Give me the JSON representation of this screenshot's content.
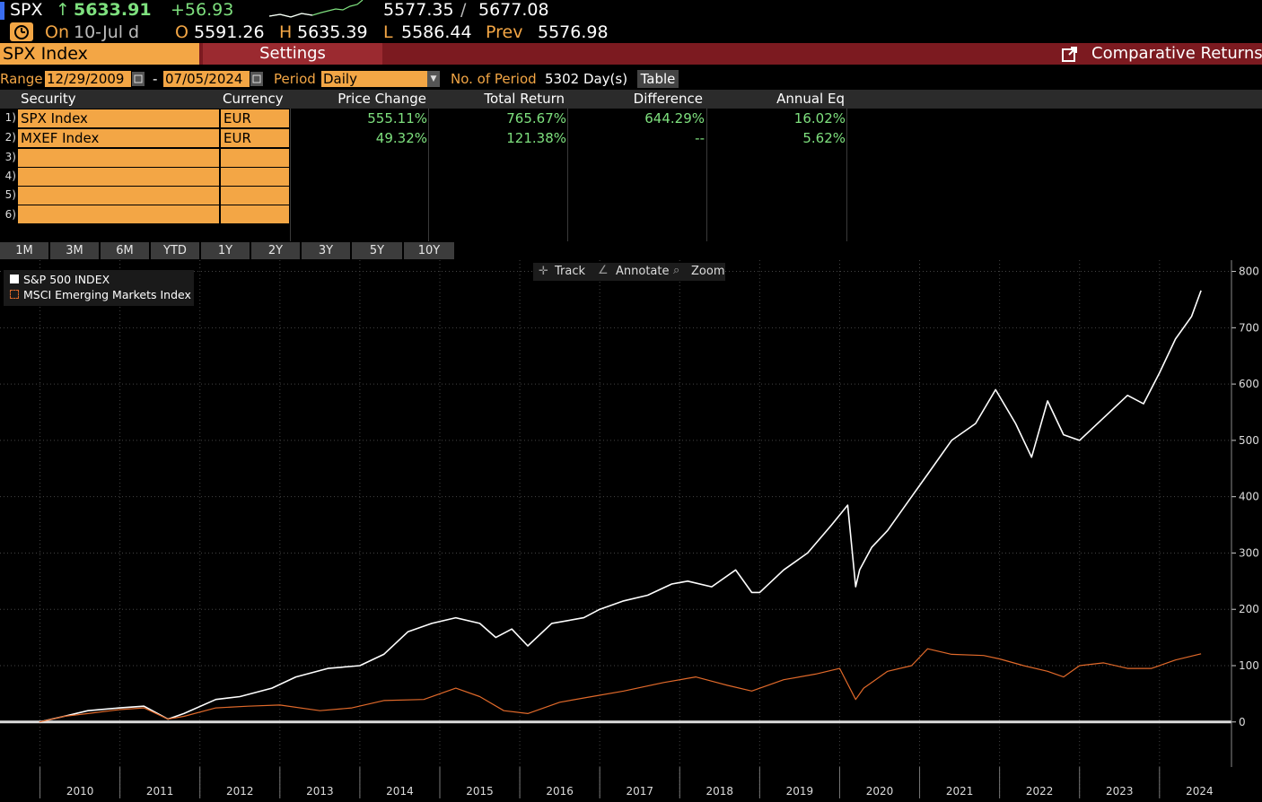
{
  "ticker": {
    "symbol": "SPX",
    "arrow": "↑",
    "last": "5633.91",
    "change": "+56.93",
    "range_low": "5577.35",
    "range_sep": "/",
    "range_high": "5677.08"
  },
  "quote": {
    "on_label": "On",
    "date": "10-Jul d",
    "open_label": "O",
    "open": "5591.26",
    "high_label": "H",
    "high": "5635.39",
    "low_label": "L",
    "low": "5586.44",
    "prev_label": "Prev",
    "prev": "5576.98"
  },
  "toolbar": {
    "security_input": "SPX Index",
    "settings_label": "Settings",
    "comparative_returns_label": "Comparative Returns"
  },
  "controls": {
    "range_label": "Range",
    "start_date": "12/29/2009",
    "dash": "-",
    "end_date": "07/05/2024",
    "period_label": "Period",
    "period_value": "Daily",
    "num_period_label": "No. of Period",
    "num_period_value": "5302 Day(s)",
    "table_button": "Table"
  },
  "table": {
    "headers": [
      "Security",
      "Currency",
      "Price Change",
      "Total Return",
      "Difference",
      "Annual Eq"
    ],
    "rows": [
      {
        "num": "1)",
        "security": "SPX Index",
        "currency": "EUR",
        "price_change": "555.11%",
        "total_return": "765.67%",
        "difference": "644.29%",
        "annual_eq": "16.02%"
      },
      {
        "num": "2)",
        "security": "MXEF Index",
        "currency": "EUR",
        "price_change": "49.32%",
        "total_return": "121.38%",
        "difference": "--",
        "annual_eq": "5.62%"
      },
      {
        "num": "3)",
        "security": "",
        "currency": "",
        "price_change": "",
        "total_return": "",
        "difference": "",
        "annual_eq": ""
      },
      {
        "num": "4)",
        "security": "",
        "currency": "",
        "price_change": "",
        "total_return": "",
        "difference": "",
        "annual_eq": ""
      },
      {
        "num": "5)",
        "security": "",
        "currency": "",
        "price_change": "",
        "total_return": "",
        "difference": "",
        "annual_eq": ""
      },
      {
        "num": "6)",
        "security": "",
        "currency": "",
        "price_change": "",
        "total_return": "",
        "difference": "",
        "annual_eq": ""
      }
    ]
  },
  "time_tabs": [
    "1M",
    "3M",
    "6M",
    "YTD",
    "1Y",
    "2Y",
    "3Y",
    "5Y",
    "10Y"
  ],
  "chart_tools": {
    "track": "Track",
    "annotate": "Annotate",
    "zoom": "Zoom"
  },
  "colors": {
    "spx_line": "#ffffff",
    "mxef_line": "#e0692a",
    "cell_orange": "#f3a645",
    "header_red": "#7c1a20",
    "positive": "#7ee07e",
    "ticker_up": "#7ee07e",
    "label_orange": "#f3a645"
  },
  "chart_data": {
    "type": "line",
    "title": "",
    "xlabel": "",
    "ylabel": "",
    "ylim": [
      -80,
      820
    ],
    "yticks": [
      0,
      100,
      200,
      300,
      400,
      500,
      600,
      700,
      800
    ],
    "xticks": [
      "2010",
      "2011",
      "2012",
      "2013",
      "2014",
      "2015",
      "2016",
      "2017",
      "2018",
      "2019",
      "2020",
      "2021",
      "2022",
      "2023",
      "2024"
    ],
    "xlim": [
      2009.5,
      2024.9
    ],
    "legend_position": "top-left",
    "series": [
      {
        "name": "S&P 500 INDEX",
        "x": [
          2009.99,
          2010.3,
          2010.6,
          2011.0,
          2011.3,
          2011.6,
          2011.8,
          2012.2,
          2012.5,
          2012.9,
          2013.2,
          2013.6,
          2014.0,
          2014.3,
          2014.6,
          2014.9,
          2015.2,
          2015.5,
          2015.7,
          2015.9,
          2016.1,
          2016.4,
          2016.8,
          2017.0,
          2017.3,
          2017.6,
          2017.9,
          2018.1,
          2018.4,
          2018.7,
          2018.9,
          2019.0,
          2019.3,
          2019.6,
          2019.9,
          2020.1,
          2020.2,
          2020.25,
          2020.4,
          2020.6,
          2020.9,
          2021.1,
          2021.4,
          2021.7,
          2021.95,
          2022.2,
          2022.4,
          2022.6,
          2022.8,
          2023.0,
          2023.3,
          2023.6,
          2023.8,
          2024.0,
          2024.2,
          2024.4,
          2024.52
        ],
        "values": [
          0,
          10,
          20,
          25,
          28,
          5,
          15,
          40,
          45,
          60,
          80,
          95,
          100,
          120,
          160,
          175,
          185,
          175,
          150,
          165,
          135,
          175,
          185,
          200,
          215,
          225,
          245,
          250,
          240,
          270,
          230,
          230,
          270,
          300,
          350,
          385,
          240,
          270,
          310,
          340,
          400,
          440,
          500,
          530,
          590,
          530,
          470,
          570,
          510,
          500,
          540,
          580,
          565,
          620,
          680,
          720,
          766
        ]
      },
      {
        "name": "MSCI Emerging Markets Index",
        "x": [
          2009.99,
          2010.3,
          2010.6,
          2011.0,
          2011.3,
          2011.6,
          2011.8,
          2012.2,
          2012.6,
          2013.0,
          2013.5,
          2013.9,
          2014.3,
          2014.8,
          2015.2,
          2015.5,
          2015.8,
          2016.1,
          2016.5,
          2016.9,
          2017.3,
          2017.8,
          2018.2,
          2018.6,
          2018.9,
          2019.3,
          2019.7,
          2020.0,
          2020.2,
          2020.3,
          2020.6,
          2020.9,
          2021.1,
          2021.4,
          2021.8,
          2022.0,
          2022.3,
          2022.6,
          2022.8,
          2023.0,
          2023.3,
          2023.6,
          2023.9,
          2024.2,
          2024.52
        ],
        "values": [
          0,
          10,
          15,
          22,
          25,
          5,
          10,
          25,
          28,
          30,
          20,
          25,
          38,
          40,
          60,
          45,
          20,
          15,
          35,
          45,
          55,
          70,
          80,
          65,
          55,
          75,
          85,
          95,
          40,
          60,
          90,
          100,
          130,
          120,
          118,
          112,
          100,
          90,
          80,
          100,
          105,
          95,
          95,
          110,
          121
        ]
      }
    ]
  }
}
